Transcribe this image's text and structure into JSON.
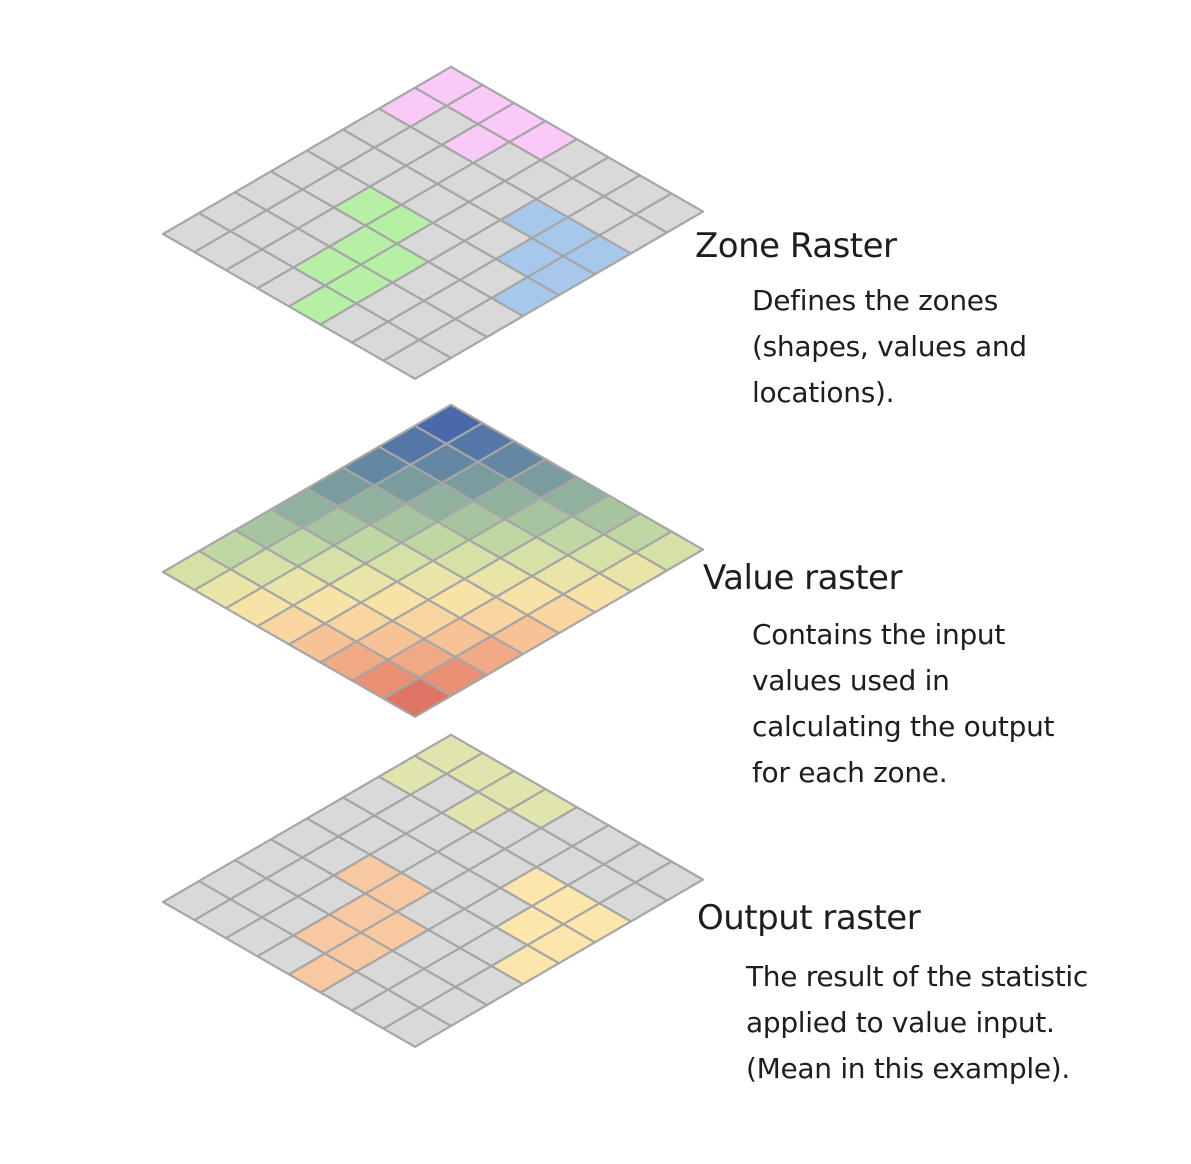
{
  "layers": [
    {
      "id": "zone",
      "title": "Zone Raster",
      "description": [
        "Defines the zones",
        "(shapes, values and",
        "locations)."
      ]
    },
    {
      "id": "value",
      "title": "Value raster",
      "description": [
        "Contains the input",
        "values used in",
        "calculating the output",
        "for each zone."
      ]
    },
    {
      "id": "output",
      "title": "Output raster",
      "description": [
        "The result of the statistic",
        "applied to value input.",
        "(Mean in this example)."
      ]
    }
  ],
  "colors": {
    "background_cell": "#d9d9d9",
    "grid_line": "#a6a6a6",
    "zone_green": "#b6f0a4",
    "zone_pink": "#f9c9f7",
    "zone_blue": "#a7c8ea",
    "output_orange": "#f8c9a1",
    "output_yellow": "#fde6ac",
    "output_olive": "#e1e4ac",
    "value_ramp": [
      "#e07565",
      "#ef9f7d",
      "#f6c598",
      "#fbe3a6",
      "#e6e5a6",
      "#c4dca4",
      "#9ebf9e",
      "#7d9e9e",
      "#5a7fa6",
      "#4a68aa"
    ]
  },
  "zone_cells": {
    "green": [
      [
        4,
        0
      ],
      [
        4,
        1
      ],
      [
        3,
        1
      ],
      [
        3,
        2
      ],
      [
        4,
        2
      ],
      [
        2,
        3
      ],
      [
        3,
        3
      ]
    ],
    "pink": [
      [
        0,
        6
      ],
      [
        0,
        7
      ],
      [
        1,
        7
      ],
      [
        2,
        6
      ],
      [
        2,
        7
      ],
      [
        3,
        7
      ]
    ],
    "blue": [
      [
        7,
        3
      ],
      [
        6,
        4
      ],
      [
        7,
        4
      ],
      [
        5,
        5
      ],
      [
        6,
        5
      ],
      [
        7,
        5
      ],
      [
        8,
        5
      ]
    ]
  }
}
